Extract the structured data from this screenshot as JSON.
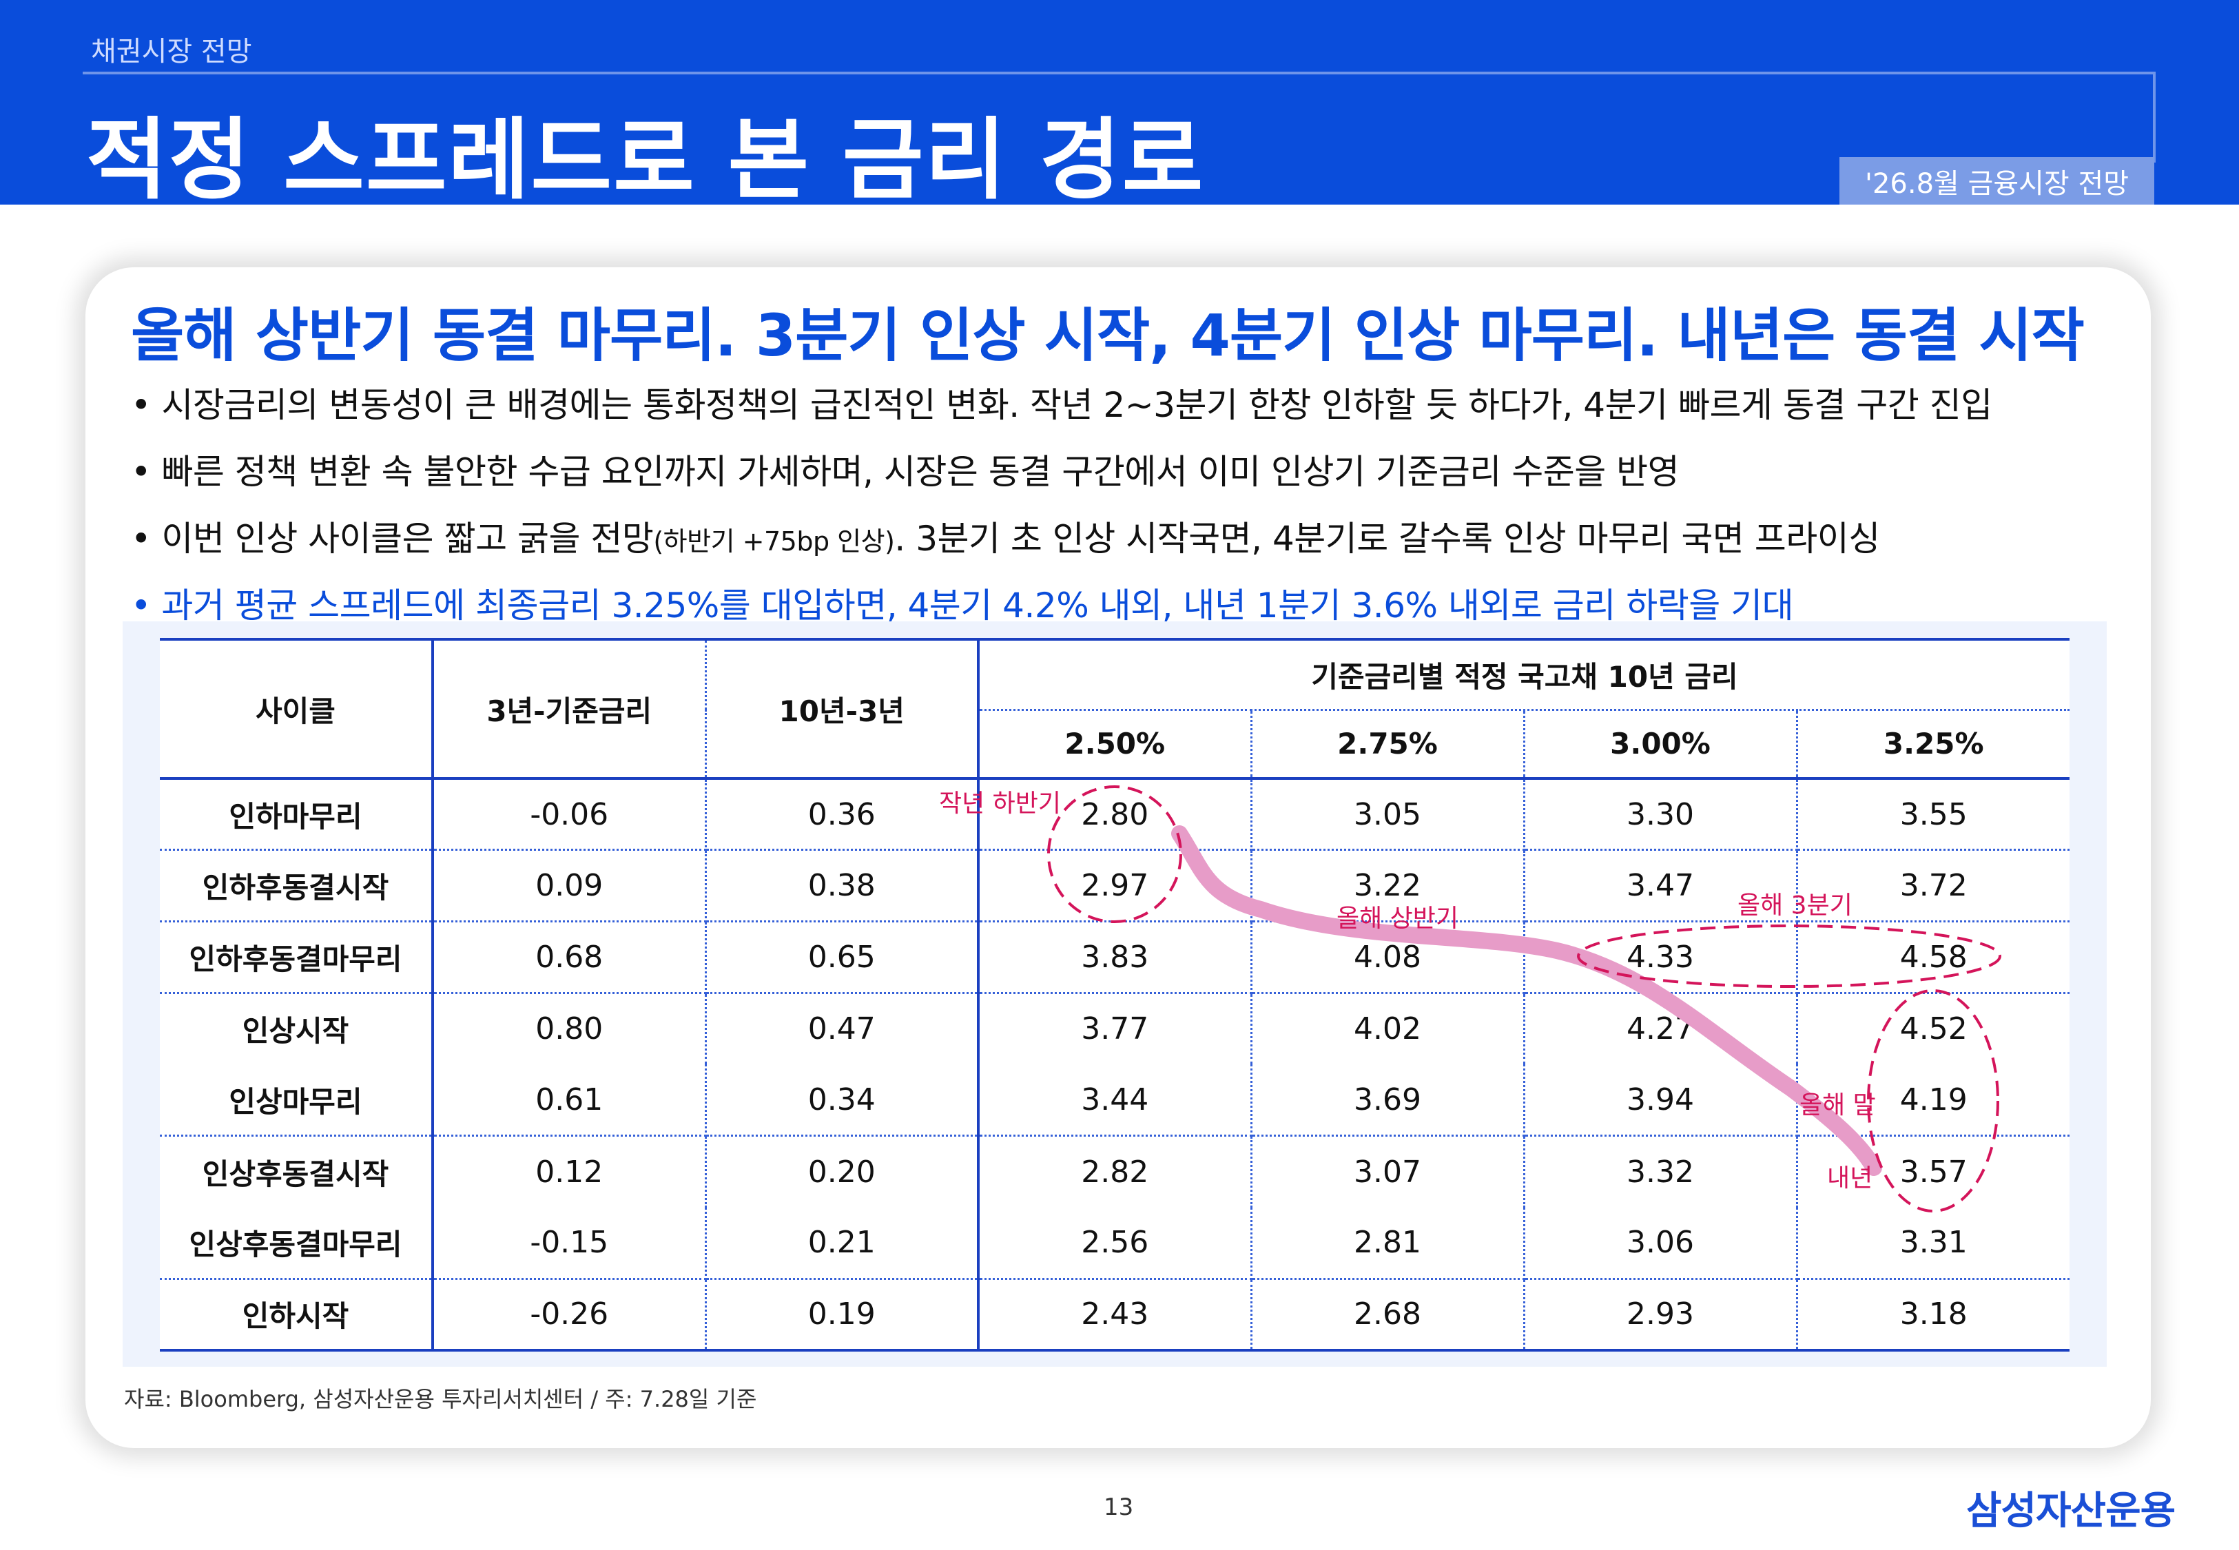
{
  "header": {
    "section": "채권시장 전망",
    "title": "적정 스프레드로 본 금리 경로",
    "badge": "'26.8월 금융시장 전망"
  },
  "headline": "올해 상반기 동결 마무리. 3분기 인상 시작, 4분기 인상 마무리. 내년은 동결 시작",
  "bullets": [
    "• 시장금리의 변동성이 큰 배경에는 통화정책의 급진적인 변화. 작년 2~3분기 한창 인하할 듯 하다가, 4분기 빠르게 동결 구간 진입",
    "• 빠른 정책 변환 속 불안한 수급 요인까지 가세하며, 시장은 동결 구간에서 이미 인상기 기준금리 수준을 반영"
  ],
  "bullet3": {
    "pre": "• 이번 인상 사이클은 짧고 굵을 전망",
    "small": "(하반기 +75bp 인상)",
    "post": ". 3분기 초 인상 시작국면, 4분기로 갈수록 인상 마무리 국면 프라이싱"
  },
  "bullet4": "• 과거 평균 스프레드에 최종금리 3.25%를 대입하면, 4분기 4.2% 내외, 내년 1분기 3.6% 내외로 금리 하락을 기대",
  "table": {
    "h_cycle": "사이클",
    "h_spread1": "3년-기준금리",
    "h_spread2": "10년-3년",
    "h_group": "기준금리별 적정 국고채 10년 금리",
    "h_rates": [
      "2.50%",
      "2.75%",
      "3.00%",
      "3.25%"
    ],
    "rows": [
      {
        "cycle": "인하마무리",
        "s1": "-0.06",
        "s2": "0.36",
        "v": [
          "2.80",
          "3.05",
          "3.30",
          "3.55"
        ]
      },
      {
        "cycle": "인하후동결시작",
        "s1": "0.09",
        "s2": "0.38",
        "v": [
          "2.97",
          "3.22",
          "3.47",
          "3.72"
        ]
      },
      {
        "cycle": "인하후동결마무리",
        "s1": "0.68",
        "s2": "0.65",
        "v": [
          "3.83",
          "4.08",
          "4.33",
          "4.58"
        ]
      },
      {
        "cycle": "인상시작",
        "s1": "0.80",
        "s2": "0.47",
        "v": [
          "3.77",
          "4.02",
          "4.27",
          "4.52"
        ]
      },
      {
        "cycle": "인상마무리",
        "s1": "0.61",
        "s2": "0.34",
        "v": [
          "3.44",
          "3.69",
          "3.94",
          "4.19"
        ]
      },
      {
        "cycle": "인상후동결시작",
        "s1": "0.12",
        "s2": "0.20",
        "v": [
          "2.82",
          "3.07",
          "3.32",
          "3.57"
        ]
      },
      {
        "cycle": "인상후동결마무리",
        "s1": "-0.15",
        "s2": "0.21",
        "v": [
          "2.56",
          "2.81",
          "3.06",
          "3.31"
        ]
      },
      {
        "cycle": "인하시작",
        "s1": "-0.26",
        "s2": "0.19",
        "v": [
          "2.43",
          "2.68",
          "2.93",
          "3.18"
        ]
      }
    ]
  },
  "annotations": {
    "last_year_h2": "작년 하반기",
    "this_year_h1": "올해 상반기",
    "this_year_q3": "올해 3분기",
    "this_year_end": "올해 말",
    "next_year": "내년"
  },
  "source": "자료: Bloomberg, 삼성자산운용 투자리서치센터 / 주: 7.28일 기준",
  "page_number": "13",
  "logo": "삼성자산운용",
  "colors": {
    "brand_blue": "#0a4ddb",
    "annotation": "#d4145a",
    "path": "#e79cc8"
  }
}
